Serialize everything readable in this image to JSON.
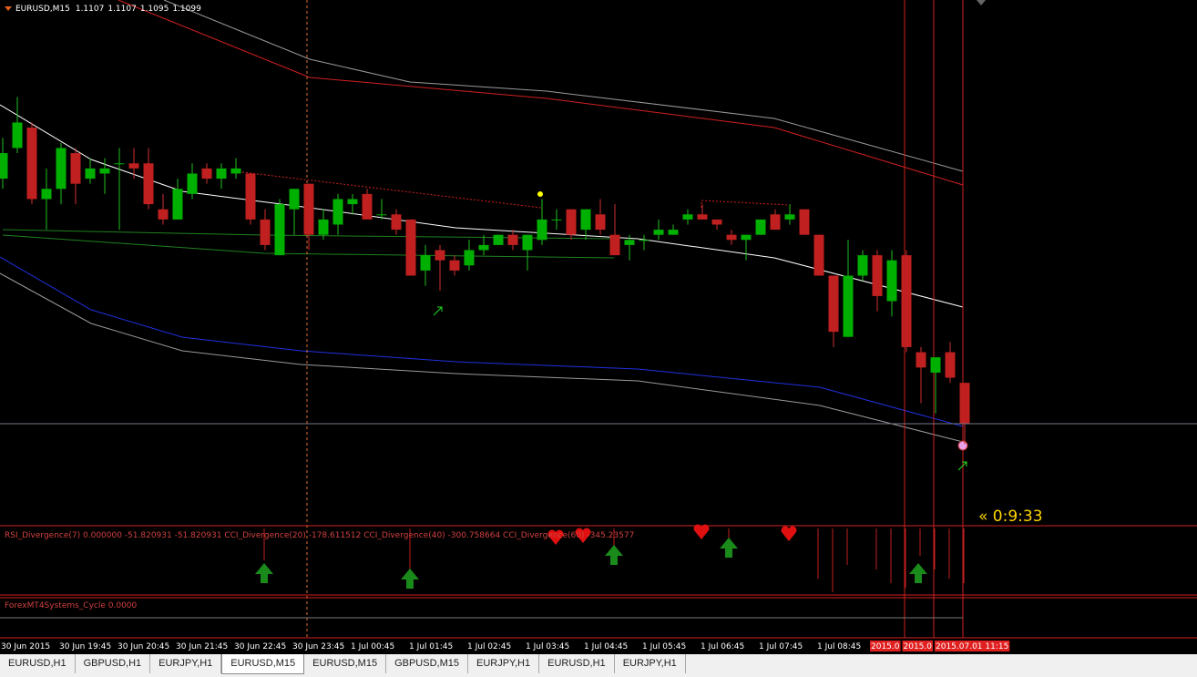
{
  "chart_data": {
    "type": "candlestick",
    "symbol": "EURUSD,M15",
    "ylim": [
      1.1079,
      1.1182
    ],
    "up_color": "#00b000",
    "down_color": "#c02020",
    "ohlc": [
      [
        1.1147,
        1.1155,
        1.1145,
        1.1152
      ],
      [
        1.1153,
        1.1163,
        1.1152,
        1.1158
      ],
      [
        1.1157,
        1.1158,
        1.1142,
        1.1143
      ],
      [
        1.1143,
        1.1149,
        1.1137,
        1.1145
      ],
      [
        1.1145,
        1.1154,
        1.1142,
        1.1153
      ],
      [
        1.1152,
        1.1153,
        1.1142,
        1.1146
      ],
      [
        1.1147,
        1.1151,
        1.1146,
        1.1149
      ],
      [
        1.1148,
        1.1151,
        1.1144,
        1.1149
      ],
      [
        1.115,
        1.1153,
        1.1137,
        1.115
      ],
      [
        1.115,
        1.1153,
        1.1147,
        1.1149
      ],
      [
        1.115,
        1.1153,
        1.1141,
        1.1142
      ],
      [
        1.1141,
        1.1144,
        1.1138,
        1.1139
      ],
      [
        1.1139,
        1.1147,
        1.1139,
        1.1145
      ],
      [
        1.1144,
        1.115,
        1.1143,
        1.1148
      ],
      [
        1.1149,
        1.115,
        1.1146,
        1.1147
      ],
      [
        1.1147,
        1.115,
        1.1145,
        1.1149
      ],
      [
        1.1148,
        1.1151,
        1.1147,
        1.1149
      ],
      [
        1.1148,
        1.1148,
        1.1138,
        1.1139
      ],
      [
        1.1139,
        1.1141,
        1.1133,
        1.1134
      ],
      [
        1.1132,
        1.1143,
        1.1132,
        1.1142
      ],
      [
        1.1141,
        1.1145,
        1.1136,
        1.1145
      ],
      [
        1.1146,
        1.1146,
        1.1133,
        1.1136
      ],
      [
        1.1136,
        1.1141,
        1.1135,
        1.1139
      ],
      [
        1.1138,
        1.1144,
        1.1136,
        1.1143
      ],
      [
        1.1142,
        1.1144,
        1.114,
        1.1143
      ],
      [
        1.1144,
        1.1145,
        1.1139,
        1.1139
      ],
      [
        1.114,
        1.1143,
        1.1139,
        1.114
      ],
      [
        1.114,
        1.1141,
        1.1136,
        1.1137
      ],
      [
        1.1139,
        1.1139,
        1.1128,
        1.1128
      ],
      [
        1.1129,
        1.1134,
        1.1126,
        1.1132
      ],
      [
        1.1133,
        1.1134,
        1.1125,
        1.1131
      ],
      [
        1.1131,
        1.1132,
        1.1128,
        1.1129
      ],
      [
        1.113,
        1.1135,
        1.1129,
        1.1133
      ],
      [
        1.1133,
        1.1136,
        1.1132,
        1.1134
      ],
      [
        1.1134,
        1.1136,
        1.1134,
        1.1136
      ],
      [
        1.1136,
        1.1137,
        1.1133,
        1.1134
      ],
      [
        1.1133,
        1.1136,
        1.1129,
        1.1136
      ],
      [
        1.1135,
        1.1143,
        1.1134,
        1.1139
      ],
      [
        1.1139,
        1.1141,
        1.1137,
        1.1139
      ],
      [
        1.1141,
        1.1141,
        1.1135,
        1.1136
      ],
      [
        1.1137,
        1.1141,
        1.1135,
        1.1141
      ],
      [
        1.114,
        1.1143,
        1.1136,
        1.1137
      ],
      [
        1.1136,
        1.1142,
        1.1132,
        1.1132
      ],
      [
        1.1134,
        1.1136,
        1.1131,
        1.1135
      ],
      [
        1.1135,
        1.1136,
        1.1133,
        1.1135
      ],
      [
        1.1136,
        1.1139,
        1.1135,
        1.1137
      ],
      [
        1.1136,
        1.1138,
        1.1136,
        1.1137
      ],
      [
        1.1139,
        1.1141,
        1.1138,
        1.114
      ],
      [
        1.114,
        1.1142,
        1.1139,
        1.1139
      ],
      [
        1.1139,
        1.1139,
        1.1137,
        1.1138
      ],
      [
        1.1136,
        1.1137,
        1.1134,
        1.1135
      ],
      [
        1.1135,
        1.1136,
        1.1131,
        1.1136
      ],
      [
        1.1136,
        1.1139,
        1.1136,
        1.1139
      ],
      [
        1.114,
        1.1141,
        1.1137,
        1.1137
      ],
      [
        1.1139,
        1.1142,
        1.1138,
        1.114
      ],
      [
        1.1141,
        1.1141,
        1.1136,
        1.1136
      ],
      [
        1.1136,
        1.1136,
        1.1128,
        1.1128
      ],
      [
        1.1128,
        1.1128,
        1.1114,
        1.1117
      ],
      [
        1.1116,
        1.1135,
        1.1116,
        1.1128
      ],
      [
        1.1128,
        1.1133,
        1.1127,
        1.1132
      ],
      [
        1.1132,
        1.1133,
        1.1121,
        1.1124
      ],
      [
        1.1123,
        1.1133,
        1.112,
        1.1131
      ],
      [
        1.1132,
        1.1133,
        1.1113,
        1.1114
      ],
      [
        1.1113,
        1.1114,
        1.1103,
        1.111
      ],
      [
        1.1109,
        1.1112,
        1.1101,
        1.1112
      ],
      [
        1.1113,
        1.1115,
        1.1107,
        1.1108
      ],
      [
        1.1107,
        1.1107,
        1.1095,
        1.1099
      ]
    ],
    "time_labels": [
      "30 Jun 2015",
      "30 Jun 19:45",
      "30 Jun 20:45",
      "30 Jun 21:45",
      "30 Jun 22:45",
      "30 Jun 23:45",
      "1 Jul 00:45",
      "1 Jul 01:45",
      "1 Jul 02:45",
      "1 Jul 03:45",
      "1 Jul 04:45",
      "1 Jul 05:45",
      "1 Jul 06:45",
      "1 Jul 07:45",
      "1 Jul 08:45"
    ],
    "marker_labels": [
      "2015.0",
      "2015.0",
      "2015.07.01 11:15"
    ],
    "timer": "« 0:9:33",
    "indicator_label": "RSI_Divergence(7) 0.000000 -51.820931 -51.820931  CCI_Divergence(20) -178.611512  CCI_Divergence(40) -300.758664  CCI_Divergence(60) -345.23577",
    "cycle_label": "ForexMT4Systems_Cycle 0.0000"
  },
  "tabs": [
    "EURUSD,H1",
    "GBPUSD,H1",
    "EURJPY,H1",
    "EURUSD,M15",
    "EURUSD,M15",
    "GBPUSD,M15",
    "EURJPY,H1",
    "EURUSD,H1",
    "EURJPY,H1"
  ],
  "active_tab": 3
}
